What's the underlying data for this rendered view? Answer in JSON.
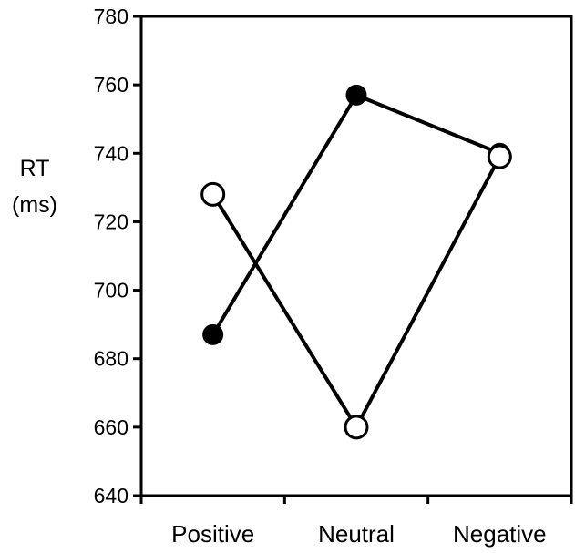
{
  "chart_data": {
    "type": "line",
    "title": "",
    "xlabel": "",
    "ylabel": [
      "RT",
      "(ms)"
    ],
    "categories": [
      "Positive",
      "Neutral",
      "Negative"
    ],
    "ylim": [
      640,
      780
    ],
    "yticks": [
      640,
      660,
      680,
      700,
      720,
      740,
      760,
      780
    ],
    "grid": false,
    "legend": "none",
    "series": [
      {
        "marker": "filled-circle",
        "color": "#000000",
        "values": [
          687,
          757,
          740
        ]
      },
      {
        "marker": "open-circle",
        "color": "#000000",
        "values": [
          728,
          660,
          739
        ]
      }
    ]
  }
}
